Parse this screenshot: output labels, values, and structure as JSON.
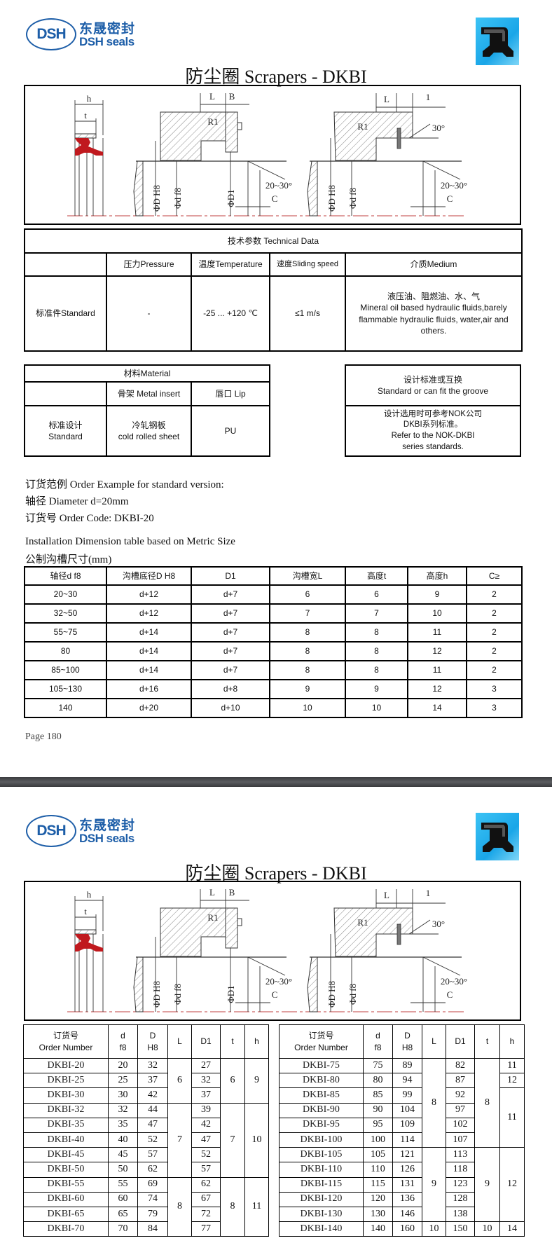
{
  "brand": {
    "logo_mark": "DSH",
    "name_cn": "东晟密封",
    "name_en": "DSH seals",
    "color": "#1d5ea8"
  },
  "title": "防尘圈 Scrapers - DKBI",
  "diagram": {
    "h": "h",
    "t": "t",
    "L": "L",
    "B": "B",
    "R1": "R1",
    "one": "1",
    "D": "ΦD H8",
    "d": "Φd f8",
    "D1": "ΦD1",
    "angle": "20~30°",
    "C": "C",
    "angle30": "30°",
    "seal_color": "#c0191e"
  },
  "technical": {
    "title": "技术参数 Technical Data",
    "headers": [
      "",
      "压力Pressure",
      "温度Temperature",
      "速度Sliding speed",
      "介质Medium"
    ],
    "row": {
      "label": "标准件Standard",
      "pressure": "-",
      "temperature": "-25 ... +120 ℃",
      "speed": "≤1 m/s",
      "medium_cn": "液压油、阻燃油、水、气",
      "medium_en": "Mineral oil based hydraulic fluids,barely flammable hydraulic fluids, water,air and others."
    }
  },
  "material": {
    "title": "材料Material",
    "headers": [
      "",
      "骨架 Metal insert",
      "唇口 Lip"
    ],
    "row": {
      "label_cn": "标准设计",
      "label_en": "Standard",
      "insert_cn": "冷轧钢板",
      "insert_en": "cold rolled sheet",
      "lip": "PU"
    }
  },
  "standard_box": {
    "title_cn": "设计标准或互换",
    "title_en": "Standard or can fit the groove",
    "body_cn_1": "设计选用时可参考NOK公司",
    "body_cn_2": "DKBI系列标准。",
    "body_en_1": "Refer to the NOK-DKBI",
    "body_en_2": "series standards."
  },
  "order_example": {
    "line1": "订货范例  Order Example for standard version:",
    "line2": "轴径  Diameter d=20mm",
    "line3": "订货号 Order Code:  DKBI-20"
  },
  "install": {
    "title_en": "Installation Dimension table based on Metric Size",
    "title_cn": "公制沟槽尺寸(mm)",
    "headers": [
      "轴径d  f8",
      "沟槽底径D  H8",
      "D1",
      "沟槽宽L",
      "高度t",
      "高度h",
      "C≥"
    ],
    "rows": [
      [
        "20~30",
        "d+12",
        "d+7",
        "6",
        "6",
        "9",
        "2"
      ],
      [
        "32~50",
        "d+12",
        "d+7",
        "7",
        "7",
        "10",
        "2"
      ],
      [
        "55~75",
        "d+14",
        "d+7",
        "8",
        "8",
        "11",
        "2"
      ],
      [
        "80",
        "d+14",
        "d+7",
        "8",
        "8",
        "12",
        "2"
      ],
      [
        "85~100",
        "d+14",
        "d+7",
        "8",
        "8",
        "11",
        "2"
      ],
      [
        "105~130",
        "d+16",
        "d+8",
        "9",
        "9",
        "12",
        "3"
      ],
      [
        "140",
        "d+20",
        "d+10",
        "10",
        "10",
        "14",
        "3"
      ]
    ]
  },
  "page_label": "Page  180",
  "order_tables": {
    "headers": {
      "order_cn": "订货号",
      "order_en": "Order Number",
      "d": "d",
      "d_tol": "f8",
      "D": "D",
      "D_tol": "H8",
      "L": "L",
      "D1": "D1",
      "t": "t",
      "h": "h"
    },
    "left": {
      "rows": [
        [
          "DKBI-20",
          "20",
          "32",
          "27"
        ],
        [
          "DKBI-25",
          "25",
          "37",
          "32"
        ],
        [
          "DKBI-30",
          "30",
          "42",
          "37"
        ],
        [
          "DKBI-32",
          "32",
          "44",
          "39"
        ],
        [
          "DKBI-35",
          "35",
          "47",
          "42"
        ],
        [
          "DKBI-40",
          "40",
          "52",
          "47"
        ],
        [
          "DKBI-45",
          "45",
          "57",
          "52"
        ],
        [
          "DKBI-50",
          "50",
          "62",
          "57"
        ],
        [
          "DKBI-55",
          "55",
          "69",
          "62"
        ],
        [
          "DKBI-60",
          "60",
          "74",
          "67"
        ],
        [
          "DKBI-65",
          "65",
          "79",
          "72"
        ],
        [
          "DKBI-70",
          "70",
          "84",
          "77"
        ]
      ],
      "L": [
        {
          "value": "6",
          "span": 3
        },
        {
          "value": "7",
          "span": 5
        },
        {
          "value": "8",
          "span": 4
        }
      ],
      "t": [
        {
          "value": "6",
          "span": 3
        },
        {
          "value": "7",
          "span": 5
        },
        {
          "value": "8",
          "span": 4
        }
      ],
      "h": [
        {
          "value": "9",
          "span": 3
        },
        {
          "value": "10",
          "span": 5
        },
        {
          "value": "11",
          "span": 4
        }
      ]
    },
    "right": {
      "rows": [
        [
          "DKBI-75",
          "75",
          "89",
          "82"
        ],
        [
          "DKBI-80",
          "80",
          "94",
          "87"
        ],
        [
          "DKBI-85",
          "85",
          "99",
          "92"
        ],
        [
          "DKBI-90",
          "90",
          "104",
          "97"
        ],
        [
          "DKBI-95",
          "95",
          "109",
          "102"
        ],
        [
          "DKBI-100",
          "100",
          "114",
          "107"
        ],
        [
          "DKBI-105",
          "105",
          "121",
          "113"
        ],
        [
          "DKBI-110",
          "110",
          "126",
          "118"
        ],
        [
          "DKBI-115",
          "115",
          "131",
          "123"
        ],
        [
          "DKBI-120",
          "120",
          "136",
          "128"
        ],
        [
          "DKBI-130",
          "130",
          "146",
          "138"
        ],
        [
          "DKBI-140",
          "140",
          "160",
          "150"
        ]
      ],
      "L": [
        {
          "value": "8",
          "span": 6
        },
        {
          "value": "9",
          "span": 5
        },
        {
          "value": "10",
          "span": 1
        }
      ],
      "t": [
        {
          "value": "8",
          "span": 6
        },
        {
          "value": "9",
          "span": 5
        },
        {
          "value": "10",
          "span": 1
        }
      ],
      "h": [
        {
          "value": "11",
          "span": 1
        },
        {
          "value": "12",
          "span": 1
        },
        {
          "value": "11",
          "span": 4
        },
        {
          "value": "12",
          "span": 5
        },
        {
          "value": "14",
          "span": 1
        }
      ]
    }
  }
}
